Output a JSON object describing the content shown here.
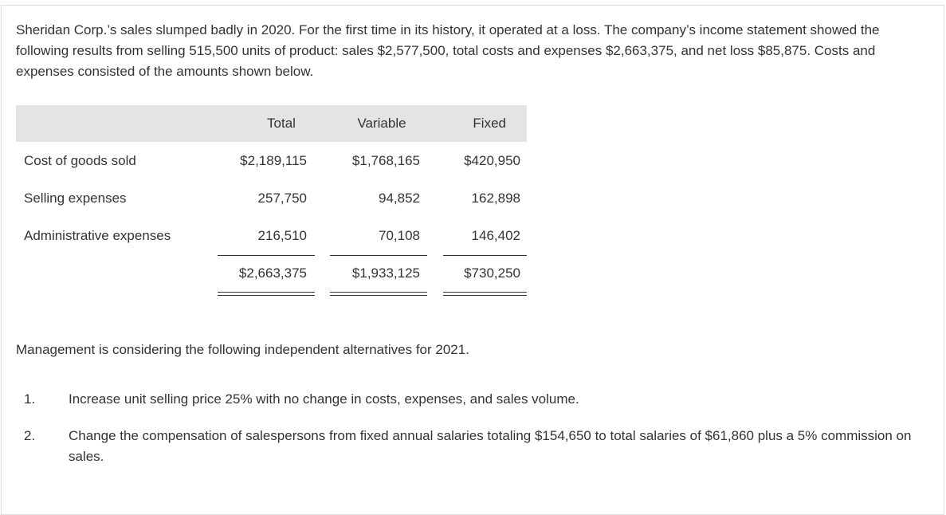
{
  "intro": "Sheridan Corp.’s sales slumped badly in 2020. For the first time in its history, it operated at a loss. The company’s income statement showed the following results from selling 515,500 units of product: sales $2,577,500, total costs and expenses $2,663,375, and net loss $85,875. Costs and expenses consisted of the amounts shown below.",
  "table": {
    "headers": [
      "",
      "Total",
      "Variable",
      "Fixed"
    ],
    "rows": [
      {
        "label": "Cost of goods sold",
        "total": "$2,189,115",
        "variable": "$1,768,165",
        "fixed": "$420,950"
      },
      {
        "label": "Selling expenses",
        "total": "257,750",
        "variable": "94,852",
        "fixed": "162,898"
      },
      {
        "label": "Administrative expenses",
        "total": "216,510",
        "variable": "70,108",
        "fixed": "146,402"
      }
    ],
    "totals": {
      "total": "$2,663,375",
      "variable": "$1,933,125",
      "fixed": "$730,250"
    }
  },
  "management": "Management is considering the following independent alternatives for 2021.",
  "alternatives": [
    {
      "number": "1.",
      "text": "Increase unit selling price 25% with no change in costs, expenses, and sales volume."
    },
    {
      "number": "2.",
      "text": "Change the compensation of salespersons from fixed annual salaries totaling $154,650 to total salaries of $61,860 plus a 5% commission on sales."
    }
  ]
}
